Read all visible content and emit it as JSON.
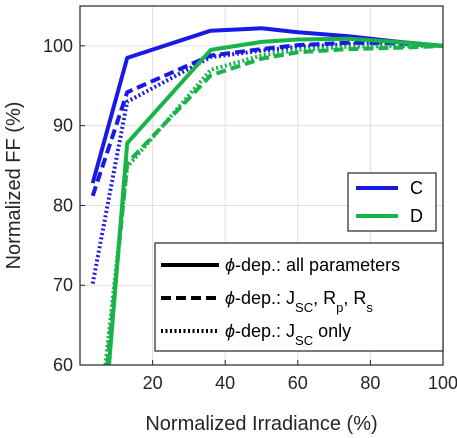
{
  "chart_data": {
    "type": "line",
    "title": "",
    "xlabel": "Normalized Irradiance (%)",
    "ylabel": "Normalized FF (%)",
    "xlim": [
      0,
      100
    ],
    "ylim": [
      60,
      105
    ],
    "xticks": [
      20,
      40,
      60,
      80,
      100
    ],
    "yticks": [
      60,
      70,
      80,
      90,
      100
    ],
    "grid": true,
    "series": [
      {
        "sample": "C",
        "model": "all",
        "color": "#1a1ae6",
        "style": "solid",
        "x": [
          3.5,
          13,
          36,
          50,
          60,
          74,
          88,
          100
        ],
        "y": [
          82.8,
          98.5,
          101.9,
          102.2,
          101.7,
          101.2,
          100.5,
          100
        ]
      },
      {
        "sample": "C",
        "model": "jsc_rp_rs",
        "color": "#1a1ae6",
        "style": "dashed",
        "x": [
          3.5,
          13,
          36,
          50,
          60,
          74,
          88,
          100
        ],
        "y": [
          81.2,
          94.2,
          98.8,
          99.6,
          100.1,
          100.4,
          100.3,
          100
        ]
      },
      {
        "sample": "C",
        "model": "jsc_only",
        "color": "#1a1ae6",
        "style": "dotted",
        "x": [
          3.5,
          13,
          36,
          50,
          60,
          74,
          88,
          100
        ],
        "y": [
          70.2,
          93.0,
          98.6,
          99.4,
          99.9,
          100.2,
          100.3,
          100
        ]
      },
      {
        "sample": "D",
        "model": "all",
        "color": "#19b34a",
        "style": "solid",
        "x": [
          8,
          13,
          36,
          50,
          60,
          74,
          90,
          100
        ],
        "y": [
          60.0,
          87.8,
          99.5,
          100.5,
          100.8,
          100.9,
          100.4,
          100
        ]
      },
      {
        "sample": "D",
        "model": "jsc_rp_rs",
        "color": "#19b34a",
        "style": "dashed",
        "x": [
          7.5,
          13,
          36,
          50,
          60,
          74,
          90,
          100
        ],
        "y": [
          60.0,
          85.3,
          96.3,
          98.4,
          99.2,
          99.6,
          99.8,
          100
        ]
      },
      {
        "sample": "D",
        "model": "jsc_only",
        "color": "#19b34a",
        "style": "dotted",
        "x": [
          7,
          13,
          36,
          50,
          60,
          74,
          90,
          100
        ],
        "y": [
          60.0,
          84.8,
          97.0,
          98.8,
          99.5,
          99.9,
          100.0,
          100
        ]
      }
    ],
    "legend_samples": {
      "placement": "right",
      "items": [
        {
          "label": "C",
          "color": "#1a1ae6"
        },
        {
          "label": "D",
          "color": "#19b34a"
        }
      ]
    },
    "legend_models": {
      "placement": "bottom-right",
      "items": [
        {
          "style": "solid",
          "phi": "ϕ",
          "text": "-dep.: all parameters"
        },
        {
          "style": "dashed",
          "phi": "ϕ",
          "text": "-dep.: J",
          "sub": "SC",
          "text2": ", R",
          "sub2": "p",
          "text3": ", R",
          "sub3": "s"
        },
        {
          "style": "dotted",
          "phi": "ϕ",
          "text": "-dep.: J",
          "sub": "SC",
          "text2": " only"
        }
      ]
    }
  }
}
